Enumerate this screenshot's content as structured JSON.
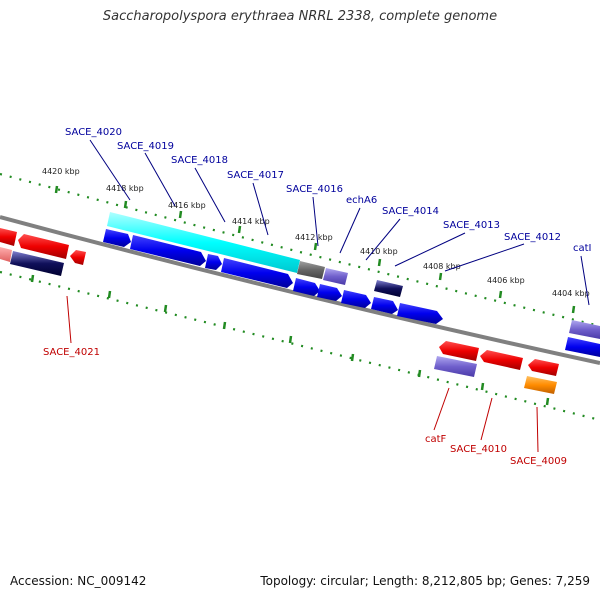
{
  "title": "Saccharopolyspora erythraea NRRL 2338, complete genome",
  "footer": {
    "accession_label": "Accession:",
    "accession": "NC_009142",
    "topology_label": "Topology:",
    "topology": "circular",
    "length_label": "Length:",
    "length": "8,212,805 bp",
    "genes_label": "Genes:",
    "genes": "7,259"
  },
  "colors": {
    "backbone": "#808080",
    "tick": "#228b22",
    "forward_cds": "#0000ee",
    "reverse_cds": "#ee0000",
    "highlight": "#00ffff",
    "label_forward": "#00009c",
    "label_reverse": "#c00000",
    "lavender": "#7060cc",
    "orange": "#ff8c00",
    "gray_feature": "#666666"
  },
  "ticks": [
    "4420 kbp",
    "4418 kbp",
    "4416 kbp",
    "4414 kbp",
    "4412 kbp",
    "4410 kbp",
    "4408 kbp",
    "4406 kbp",
    "4404 kbp"
  ],
  "upper_labels": [
    "SACE_4020",
    "SACE_4019",
    "SACE_4018",
    "SACE_4017",
    "SACE_4016",
    "echA6",
    "SACE_4014",
    "SACE_4013",
    "SACE_4012",
    "catI"
  ],
  "lower_labels": [
    "SACE_4021",
    "catF",
    "SACE_4010",
    "SACE_4009"
  ]
}
